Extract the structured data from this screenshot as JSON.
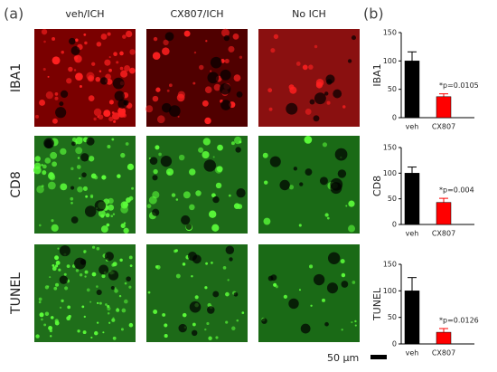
{
  "panel_a": {
    "label": "(a)",
    "columns": [
      "veh/ICH",
      "CX807/ICH",
      "No ICH"
    ],
    "rows": [
      "IBA1",
      "CD8",
      "TUNEL"
    ],
    "scale_bar": "50 μm"
  },
  "panel_b": {
    "label": "(b)"
  },
  "chart_data": [
    {
      "type": "bar",
      "ylabel": "IBA1",
      "categories": [
        "veh",
        "CX807"
      ],
      "values": [
        100,
        37
      ],
      "errors": [
        16,
        5
      ],
      "colors": [
        "#000000",
        "#ff0000"
      ],
      "ylim": [
        0,
        150
      ],
      "yticks": [
        0,
        50,
        100,
        150
      ],
      "annotation": "*p=0.0105"
    },
    {
      "type": "bar",
      "ylabel": "CD8",
      "categories": [
        "veh",
        "CX807"
      ],
      "values": [
        100,
        43
      ],
      "errors": [
        12,
        8
      ],
      "colors": [
        "#000000",
        "#ff0000"
      ],
      "ylim": [
        0,
        150
      ],
      "yticks": [
        0,
        50,
        100,
        150
      ],
      "annotation": "*p=0.004"
    },
    {
      "type": "bar",
      "ylabel": "TUNEL",
      "categories": [
        "veh",
        "CX807"
      ],
      "values": [
        100,
        22
      ],
      "errors": [
        25,
        7
      ],
      "colors": [
        "#000000",
        "#ff0000"
      ],
      "ylim": [
        0,
        150
      ],
      "yticks": [
        0,
        50,
        100,
        150
      ],
      "annotation": "*p=0.0126"
    }
  ]
}
